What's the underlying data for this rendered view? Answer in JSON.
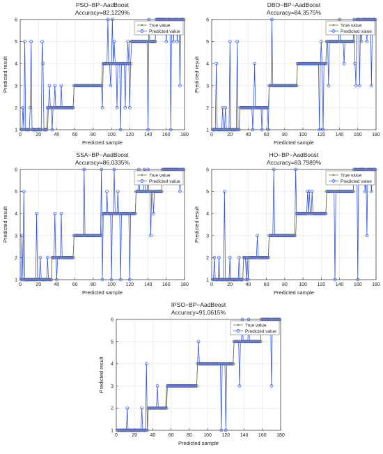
{
  "chart_data": [
    {
      "type": "line",
      "title": "PSO−BP−AadBoost",
      "subtitle": "Accuracy=82.1229%",
      "xlabel": "Predicted sample",
      "ylabel": "Predicted result",
      "xlim": [
        0,
        180
      ],
      "ylim": [
        1,
        6
      ],
      "xticks": [
        0,
        20,
        40,
        60,
        80,
        100,
        120,
        140,
        160,
        180
      ],
      "yticks": [
        1,
        2,
        3,
        4,
        5,
        6
      ],
      "grid": true,
      "legend_position": "top-right",
      "legend": [
        "True value",
        "Predicted value"
      ],
      "true_segments": [
        [
          1,
          30,
          1
        ],
        [
          31,
          58,
          2
        ],
        [
          59,
          89,
          3
        ],
        [
          90,
          119,
          4
        ],
        [
          120,
          148,
          5
        ],
        [
          149,
          179,
          6
        ]
      ],
      "predicted_errors": [
        [
          3,
          2
        ],
        [
          5,
          5
        ],
        [
          11,
          2
        ],
        [
          12,
          5
        ],
        [
          20,
          1
        ],
        [
          24,
          5
        ],
        [
          25,
          4
        ],
        [
          30,
          2
        ],
        [
          32,
          3
        ],
        [
          35,
          1
        ],
        [
          38,
          3
        ],
        [
          40,
          2
        ],
        [
          45,
          3
        ],
        [
          90,
          2
        ],
        [
          96,
          6
        ],
        [
          99,
          3
        ],
        [
          101,
          6
        ],
        [
          103,
          5
        ],
        [
          106,
          2
        ],
        [
          110,
          1
        ],
        [
          115,
          2
        ],
        [
          118,
          5
        ],
        [
          120,
          2
        ],
        [
          121,
          4
        ],
        [
          140,
          1
        ],
        [
          141,
          6
        ],
        [
          160,
          5
        ],
        [
          165,
          1
        ],
        [
          168,
          5
        ],
        [
          172,
          5
        ],
        [
          175,
          3
        ]
      ]
    },
    {
      "type": "line",
      "title": "DBO−BP−AadBoost",
      "subtitle": "Accuracy=84.3575%",
      "xlabel": "Predicted sample",
      "ylabel": "Predicted result",
      "xlim": [
        0,
        180
      ],
      "ylim": [
        1,
        6
      ],
      "xticks": [
        0,
        20,
        40,
        60,
        80,
        100,
        120,
        140,
        160,
        180
      ],
      "yticks": [
        1,
        2,
        3,
        4,
        5,
        6
      ],
      "grid": true,
      "legend_position": "top-right",
      "legend": [
        "True value",
        "Predicted value"
      ],
      "true_segments": [
        [
          1,
          30,
          1
        ],
        [
          31,
          62,
          2
        ],
        [
          63,
          93,
          3
        ],
        [
          94,
          125,
          4
        ],
        [
          126,
          155,
          5
        ],
        [
          156,
          179,
          6
        ]
      ],
      "predicted_errors": [
        [
          5,
          4
        ],
        [
          12,
          2
        ],
        [
          15,
          2
        ],
        [
          17,
          1
        ],
        [
          20,
          5
        ],
        [
          28,
          5
        ],
        [
          45,
          1
        ],
        [
          47,
          4
        ],
        [
          55,
          1
        ],
        [
          62,
          1
        ],
        [
          66,
          6
        ],
        [
          118,
          1
        ],
        [
          120,
          5
        ],
        [
          122,
          1
        ],
        [
          128,
          3
        ],
        [
          135,
          5
        ],
        [
          140,
          6
        ],
        [
          145,
          4
        ],
        [
          157,
          4
        ],
        [
          158,
          3
        ],
        [
          162,
          3
        ],
        [
          164,
          5
        ],
        [
          170,
          5
        ],
        [
          175,
          3
        ]
      ]
    },
    {
      "type": "line",
      "title": "SSA−BP−AadBoost",
      "subtitle": "Accuracy=86.0335%",
      "xlabel": "Predicted sample",
      "ylabel": "Predicted result",
      "xlim": [
        0,
        180
      ],
      "ylim": [
        1,
        6
      ],
      "xticks": [
        0,
        20,
        40,
        60,
        80,
        100,
        120,
        140,
        160,
        180
      ],
      "yticks": [
        1,
        2,
        3,
        4,
        5,
        6
      ],
      "grid": true,
      "legend_position": "top-right",
      "legend": [
        "True value",
        "Predicted value"
      ],
      "true_segments": [
        [
          1,
          34,
          1
        ],
        [
          35,
          58,
          2
        ],
        [
          59,
          89,
          3
        ],
        [
          90,
          126,
          4
        ],
        [
          127,
          155,
          5
        ],
        [
          156,
          179,
          6
        ]
      ],
      "predicted_errors": [
        [
          2,
          3
        ],
        [
          4,
          5
        ],
        [
          18,
          4
        ],
        [
          22,
          2
        ],
        [
          30,
          2
        ],
        [
          38,
          4
        ],
        [
          40,
          1
        ],
        [
          45,
          4
        ],
        [
          50,
          2
        ],
        [
          70,
          6
        ],
        [
          89,
          6
        ],
        [
          90,
          1
        ],
        [
          95,
          5
        ],
        [
          100,
          1
        ],
        [
          103,
          6
        ],
        [
          107,
          5
        ],
        [
          110,
          1
        ],
        [
          120,
          1
        ],
        [
          130,
          6
        ],
        [
          136,
          6
        ],
        [
          140,
          6
        ],
        [
          143,
          3
        ],
        [
          146,
          4
        ],
        [
          175,
          5
        ]
      ]
    },
    {
      "type": "line",
      "title": "HO−BP−AadBoost",
      "subtitle": "Accuracy=83.7989%",
      "xlabel": "Predicted sample",
      "ylabel": "Predicted result",
      "xlim": [
        0,
        180
      ],
      "ylim": [
        1,
        6
      ],
      "xticks": [
        0,
        20,
        40,
        60,
        80,
        100,
        120,
        140,
        160,
        180
      ],
      "yticks": [
        1,
        2,
        3,
        4,
        5,
        6
      ],
      "grid": true,
      "legend_position": "top-right",
      "legend": [
        "True value",
        "Predicted value"
      ],
      "true_segments": [
        [
          1,
          34,
          1
        ],
        [
          35,
          62,
          2
        ],
        [
          63,
          92,
          3
        ],
        [
          93,
          125,
          4
        ],
        [
          126,
          155,
          5
        ],
        [
          156,
          179,
          6
        ]
      ],
      "predicted_errors": [
        [
          3,
          2
        ],
        [
          8,
          2
        ],
        [
          10,
          1
        ],
        [
          14,
          5
        ],
        [
          20,
          2
        ],
        [
          25,
          1
        ],
        [
          30,
          2
        ],
        [
          35,
          2
        ],
        [
          38,
          1
        ],
        [
          40,
          1
        ],
        [
          50,
          3
        ],
        [
          60,
          2
        ],
        [
          68,
          6
        ],
        [
          92,
          6
        ],
        [
          100,
          4
        ],
        [
          105,
          5
        ],
        [
          107,
          5
        ],
        [
          110,
          5
        ],
        [
          115,
          4
        ],
        [
          120,
          4
        ],
        [
          135,
          1
        ],
        [
          140,
          5
        ],
        [
          160,
          1
        ],
        [
          165,
          6
        ],
        [
          168,
          5
        ],
        [
          170,
          3
        ],
        [
          175,
          5
        ]
      ]
    },
    {
      "type": "line",
      "title": "IPSO−BP−AadBoost",
      "subtitle": "Accuracy=91.0615%",
      "xlabel": "Predicted sample",
      "ylabel": "Predicted result",
      "xlim": [
        0,
        180
      ],
      "ylim": [
        1,
        6
      ],
      "xticks": [
        0,
        20,
        40,
        60,
        80,
        100,
        120,
        140,
        160,
        180
      ],
      "yticks": [
        1,
        2,
        3,
        4,
        5,
        6
      ],
      "grid": true,
      "legend_position": "top-right",
      "legend": [
        "True value",
        "Predicted value"
      ],
      "true_segments": [
        [
          1,
          34,
          1
        ],
        [
          35,
          54,
          2
        ],
        [
          55,
          88,
          3
        ],
        [
          89,
          128,
          4
        ],
        [
          129,
          158,
          5
        ],
        [
          159,
          179,
          6
        ]
      ],
      "predicted_errors": [
        [
          12,
          2
        ],
        [
          28,
          2
        ],
        [
          30,
          1
        ],
        [
          33,
          4
        ],
        [
          45,
          3
        ],
        [
          55,
          2
        ],
        [
          90,
          5
        ],
        [
          115,
          1
        ],
        [
          120,
          1
        ],
        [
          135,
          3
        ],
        [
          138,
          6
        ],
        [
          145,
          6
        ],
        [
          170,
          3
        ]
      ]
    }
  ],
  "colors": {
    "true": "#7a7a2a",
    "true_marker": "#7f7f7f",
    "pred": "#3355dd",
    "grid": "#e3e3e3",
    "axis": "#333333"
  }
}
